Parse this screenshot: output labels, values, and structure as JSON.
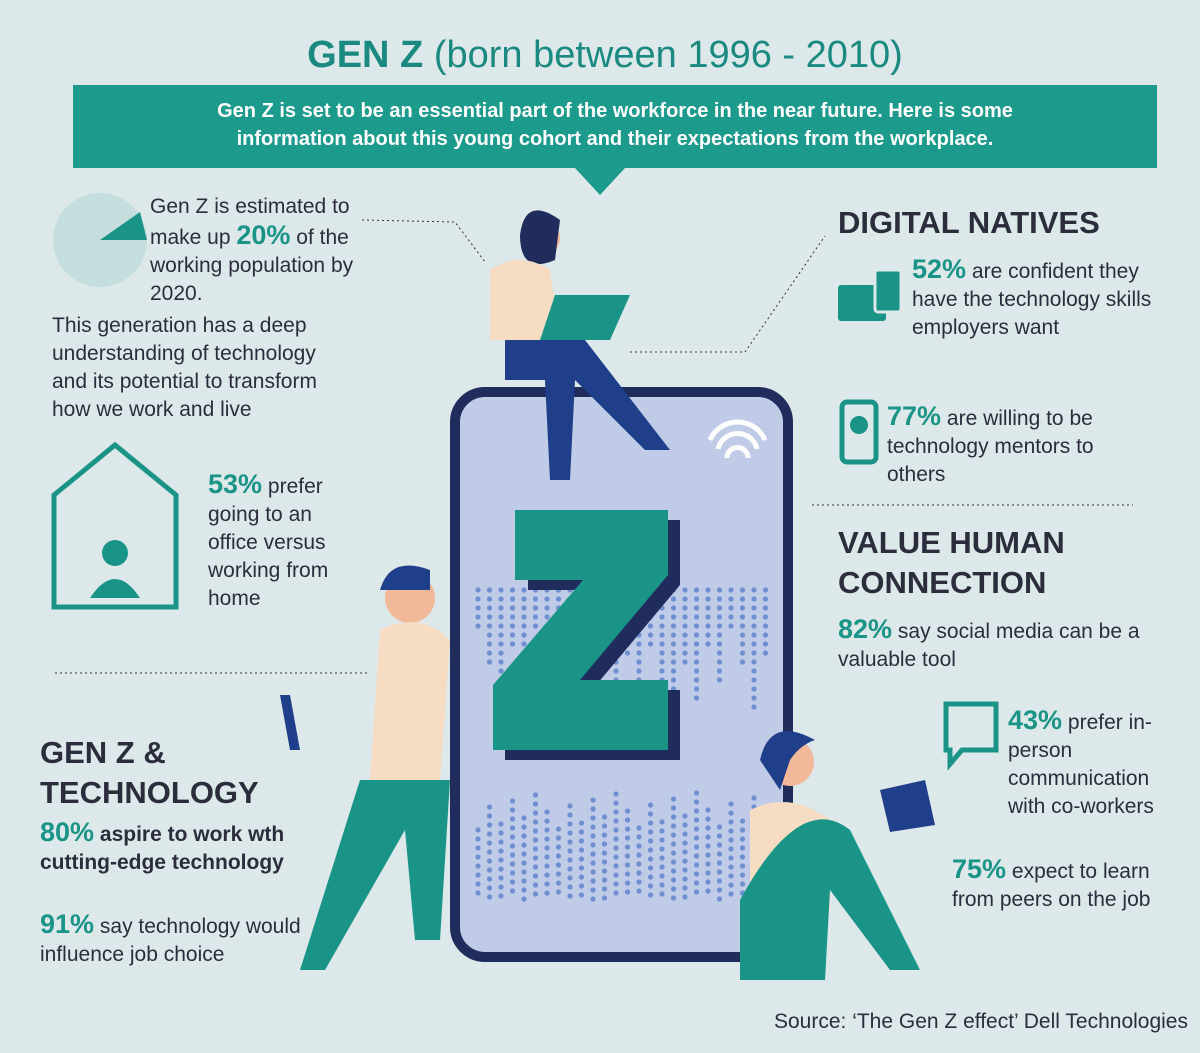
{
  "header": {
    "title_bold": "GEN Z",
    "title_rest": "(born between 1996 - 2010)",
    "intro": [
      "Gen Z is set to be an essential part of the workforce in the near future.  Here is some",
      "information about this young cohort and their expectations from the workplace."
    ]
  },
  "workforce": {
    "before": "Gen Z is estimated to make up",
    "stat": "20%",
    "after": "of the working population by 2020.",
    "detail": "This generation has a deep understanding of technology and its potential to transform how we work and live"
  },
  "office": {
    "stat": "53%",
    "text": "prefer going to an office versus working from home"
  },
  "technology": {
    "title": "GEN Z & TECHNOLOGY",
    "items": [
      {
        "stat": "80%",
        "text": "aspire to work wth cutting-edge technology"
      },
      {
        "stat": "91%",
        "text": "say technology would influence job choice"
      }
    ]
  },
  "digital_natives": {
    "title": "DIGITAL NATIVES",
    "items": [
      {
        "stat": "52%",
        "text": "are confident they have the technology skills employers want"
      },
      {
        "stat": "77%",
        "text": "are willing to be technology mentors to others"
      }
    ]
  },
  "human_connection": {
    "title": "VALUE HUMAN CONNECTION",
    "items": [
      {
        "stat": "82%",
        "text": "say social media can be a valuable tool"
      },
      {
        "stat": "43%",
        "text": "prefer in-person communication with co-workers"
      },
      {
        "stat": "75%",
        "text": "expect to learn from peers on the job"
      }
    ]
  },
  "source": "Source: ‘The Gen Z effect’ Dell Technologies"
}
